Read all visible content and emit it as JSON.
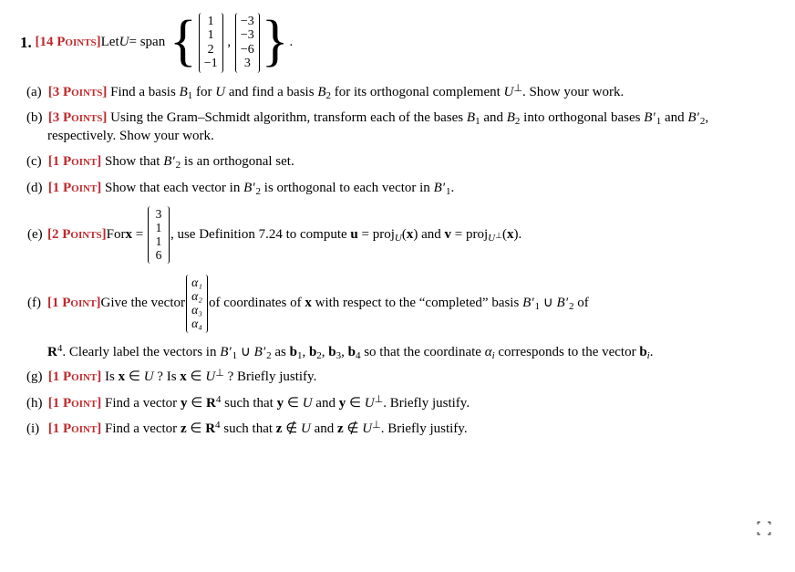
{
  "problem": {
    "number": "1.",
    "points_label": "[14 Points]",
    "intro_before": " Let ",
    "intro_after": " = span",
    "U_var": "U",
    "period": ".",
    "v1": [
      "1",
      "1",
      "2",
      "−1"
    ],
    "v2": [
      "−3",
      "−3",
      "−6",
      "3"
    ]
  },
  "parts": {
    "a": {
      "lab": "(a)",
      "pts": "[3 Points]",
      "text_html": " Find a basis <span class='inline-math'>B</span><span class='sub'>1</span> for <span class='inline-math'>U</span> and find a basis <span class='inline-math'>B</span><span class='sub'>2</span> for its orthogonal complement <span class='inline-math'>U</span><span class='perp'>⊥</span>. Show your work."
    },
    "b": {
      "lab": "(b)",
      "pts": "[3 Points]",
      "text_html": " Using the Gram–Schmidt algorithm, transform each of the bases <span class='inline-math'>B</span><span class='sub'>1</span> and <span class='inline-math'>B</span><span class='sub'>2</span> into orthogonal bases <span class='inline-math'>B</span><span class='prime'>′</span><span class='sub'>1</span> and <span class='inline-math'>B</span><span class='prime'>′</span><span class='sub'>2</span>, respectively. Show your work."
    },
    "c": {
      "lab": "(c)",
      "pts": "[1 Point]",
      "text_html": " Show that <span class='inline-math'>B</span><span class='prime'>′</span><span class='sub'>2</span> is an orthogonal set."
    },
    "d": {
      "lab": "(d)",
      "pts": "[1 Point]",
      "text_html": " Show that each vector in <span class='inline-math'>B</span><span class='prime'>′</span><span class='sub'>2</span> is orthogonal to each vector in <span class='inline-math'>B</span><span class='prime'>′</span><span class='sub'>1</span>."
    },
    "e": {
      "lab": "(e)",
      "pts": "[2 Points]",
      "before": " For ",
      "x_eq": "x",
      "vec": [
        "3",
        "1",
        "1",
        "6"
      ],
      "after_html": ", use Definition 7.24 to compute <span class='bold'>u</span> = <span class='proj'>proj</span><span class='sub'><span class='inline-math'>U</span></span>(<span class='bold'>x</span>) and <span class='bold'>v</span> = <span class='proj'>proj</span><span class='sub'><span class='inline-math'>U</span><span style='font-size:9px;position:relative;top:-3px;'>⊥</span></span>(<span class='bold'>x</span>)."
    },
    "f": {
      "lab": "(f)",
      "pts": "[1 Point]",
      "before": " Give the vector ",
      "vec": [
        "α₁",
        "α₂",
        "α₃",
        "α₄"
      ],
      "after_html": " of coordinates of <span class='bold'>x</span> with respect to the “completed” basis <span class='inline-math'>B</span><span class='prime'>′</span><span class='sub'>1</span> ∪ <span class='inline-math'>B</span><span class='prime'>′</span><span class='sub'>2</span> of",
      "cont_html": "<span class='bold'>R</span><span class='sup'>4</span>. Clearly label the vectors in <span class='inline-math'>B</span><span class='prime'>′</span><span class='sub'>1</span> ∪ <span class='inline-math'>B</span><span class='prime'>′</span><span class='sub'>2</span> as <span class='bold'>b</span><span class='sub'>1</span>, <span class='bold'>b</span><span class='sub'>2</span>, <span class='bold'>b</span><span class='sub'>3</span>, <span class='bold'>b</span><span class='sub'>4</span> so that the coordinate <span class='inline-math'>α<span class='sub'>i</span></span> corresponds to the vector <span class='bold'>b</span><span class='sub'><span class='inline-math'>i</span></span>."
    },
    "g": {
      "lab": "(g)",
      "pts": "[1 Point]",
      "text_html": " Is <span class='bold'>x</span> ∈ <span class='inline-math'>U</span> ? Is <span class='bold'>x</span> ∈ <span class='inline-math'>U</span><span class='perp'>⊥</span> ? Briefly justify."
    },
    "h": {
      "lab": "(h)",
      "pts": "[1 Point]",
      "text_html": " Find a vector <span class='bold'>y</span> ∈ <span class='bold'>R</span><span class='sup'>4</span> such that <span class='bold'>y</span> ∈ <span class='inline-math'>U</span> and <span class='bold'>y</span> ∈ <span class='inline-math'>U</span><span class='perp'>⊥</span>. Briefly justify."
    },
    "i": {
      "lab": "(i)",
      "pts": "[1 Point]",
      "text_html": " Find a vector <span class='bold'>z</span> ∈ <span class='bold'>R</span><span class='sup'>4</span> such that <span class='bold'>z</span> ∉ <span class='inline-math'>U</span> and <span class='bold'>z</span> ∉ <span class='inline-math'>U</span><span class='perp'>⊥</span>. Briefly justify."
    }
  },
  "colors": {
    "points_color": "#c0282b"
  }
}
